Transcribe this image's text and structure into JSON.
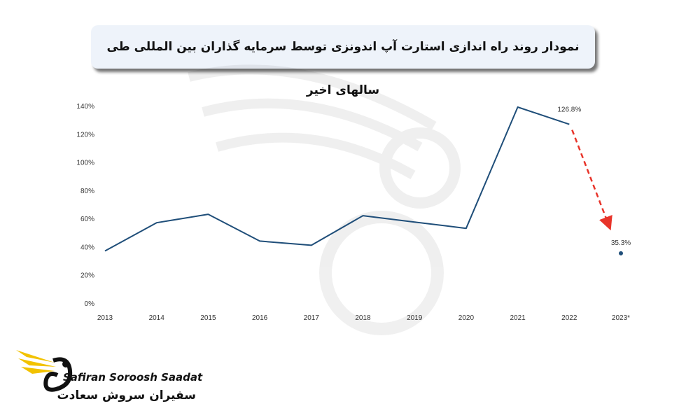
{
  "title": "نمودار روند راه اندازی استارت آپ اندونزی توسط سرمایه گذاران بین المللی طی سالهای اخیر",
  "brand": {
    "name_en": "Safiran Soroosh Saadat",
    "name_fa": "سفیران سروش سعادت"
  },
  "colors": {
    "line": "#1f4e79",
    "arrow": "#e8342a",
    "title_bg": "#eef3fa",
    "logo_gold": "#f2c200"
  },
  "chart_data": {
    "type": "line",
    "categories": [
      "2013",
      "2014",
      "2015",
      "2016",
      "2017",
      "2018",
      "2019",
      "2020",
      "2021",
      "2022",
      "2023*"
    ],
    "series": [
      {
        "values": [
          37,
          57,
          63,
          44,
          41,
          62,
          57.5,
          53,
          139,
          126.8,
          null
        ]
      },
      {
        "values": [
          null,
          null,
          null,
          null,
          null,
          null,
          null,
          null,
          null,
          null,
          35.3
        ]
      }
    ],
    "data_labels": [
      {
        "category": "2022",
        "text": "126.8%"
      },
      {
        "category": "2023*",
        "text": "35.3%"
      }
    ],
    "yticks": [
      "0%",
      "20%",
      "40%",
      "60%",
      "80%",
      "100%",
      "120%",
      "140%"
    ],
    "ylim": [
      0,
      140
    ],
    "annotation": "dashed red arrow from 2022 value down toward 2023* value",
    "grid": false
  }
}
